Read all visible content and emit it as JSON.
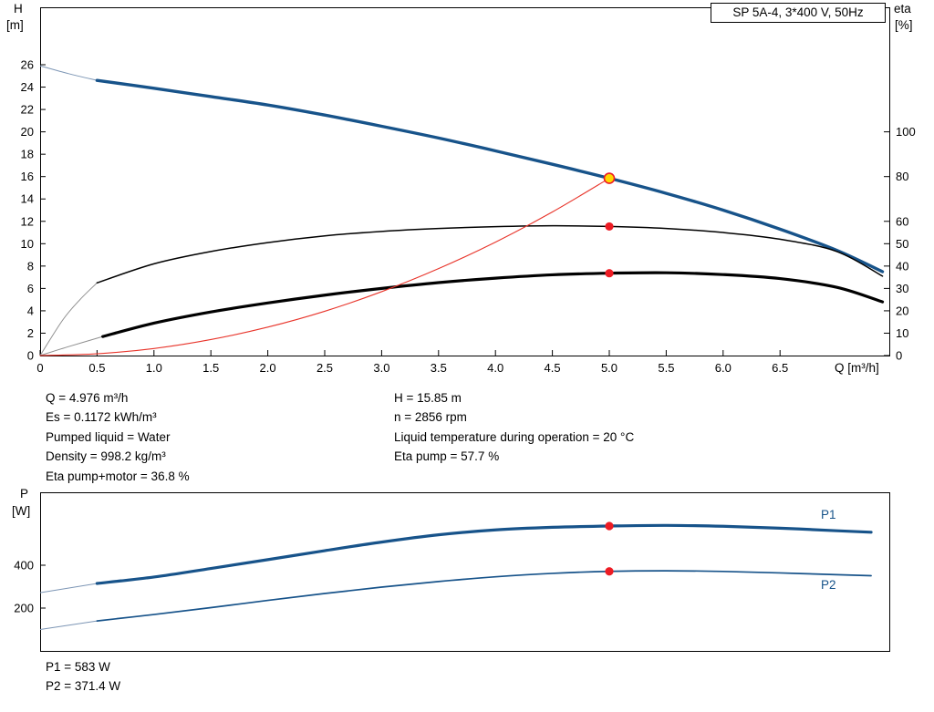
{
  "title_box": "SP 5A-4, 3*400 V, 50Hz",
  "colors": {
    "curve_blue": "#17538a",
    "curve_black": "#000000",
    "curve_red": "#e8342a",
    "dot_red": "#ed1c24",
    "duty_yellow": "#ffd800",
    "lead_gray": "#8f8f8f",
    "lead_blue": "#7d96b5"
  },
  "axis_labels": {
    "h": "H",
    "h_unit": "[m]",
    "eta": "eta",
    "eta_unit": "[%]",
    "q": "Q [m³/h]",
    "p": "P",
    "p_unit": "[W]",
    "p1": "P1",
    "p2": "P2"
  },
  "results": {
    "col1": [
      "Q = 4.976 m³/h",
      "Es = 0.1172 kWh/m³",
      "Pumped liquid = Water",
      "Density = 998.2 kg/m³",
      "Eta pump+motor = 36.8 %"
    ],
    "col2": [
      "H = 15.85 m",
      "n = 2856 rpm",
      "Liquid temperature during operation = 20 °C",
      "Eta pump = 57.7 %"
    ],
    "power": [
      "P1 = 583 W",
      "P2 = 371.4 W"
    ]
  },
  "chart_data": [
    {
      "type": "line",
      "title": "SP 5A-4, 3*400 V, 50Hz",
      "xlabel": "Q [m³/h]",
      "ylabel_left": "H [m]",
      "ylabel_right": "eta [%]",
      "x_range": [
        0,
        7.46
      ],
      "grid": false,
      "x_ticks": [
        {
          "v": 0,
          "t": "0"
        },
        {
          "v": 0.5,
          "t": "0.5"
        },
        {
          "v": 1,
          "t": "1.0"
        },
        {
          "v": 1.5,
          "t": "1.5"
        },
        {
          "v": 2,
          "t": "2.0"
        },
        {
          "v": 2.5,
          "t": "2.5"
        },
        {
          "v": 3,
          "t": "3.0"
        },
        {
          "v": 3.5,
          "t": "3.5"
        },
        {
          "v": 4,
          "t": "4.0"
        },
        {
          "v": 4.5,
          "t": "4.5"
        },
        {
          "v": 5,
          "t": "5.0"
        },
        {
          "v": 5.5,
          "t": "5.5"
        },
        {
          "v": 6,
          "t": "6.0"
        },
        {
          "v": 6.5,
          "t": "6.5"
        }
      ],
      "left_axis": {
        "label": "H [m]",
        "scale": "H",
        "range": [
          0,
          26
        ],
        "ticks": [
          {
            "v": 0,
            "t": "0"
          },
          {
            "v": 2,
            "t": "2"
          },
          {
            "v": 4,
            "t": "4"
          },
          {
            "v": 6,
            "t": "6"
          },
          {
            "v": 8,
            "t": "8"
          },
          {
            "v": 10,
            "t": "10"
          },
          {
            "v": 12,
            "t": "12"
          },
          {
            "v": 14,
            "t": "14"
          },
          {
            "v": 16,
            "t": "16"
          },
          {
            "v": 18,
            "t": "18"
          },
          {
            "v": 20,
            "t": "20"
          },
          {
            "v": 22,
            "t": "22"
          },
          {
            "v": 24,
            "t": "24"
          },
          {
            "v": 26,
            "t": "26"
          }
        ]
      },
      "right_axis": {
        "label": "eta [%]",
        "scale": "eta",
        "range": [
          0,
          100
        ],
        "ticks": [
          {
            "v": 0,
            "t": "0"
          },
          {
            "v": 10,
            "t": "10"
          },
          {
            "v": 20,
            "t": "20"
          },
          {
            "v": 30,
            "t": "30"
          },
          {
            "v": 40,
            "t": "40"
          },
          {
            "v": 50,
            "t": "50"
          },
          {
            "v": 60,
            "t": "60"
          },
          {
            "v": 80,
            "t": "80"
          },
          {
            "v": 100,
            "t": "100"
          }
        ]
      },
      "series": [
        {
          "name": "pump-head-curve",
          "scale": "H",
          "color": "#17538a",
          "width": 3.4,
          "lead_color": "#7d96b5",
          "lead_in": [
            [
              0,
              25.9
            ],
            [
              0.25,
              25.2
            ],
            [
              0.5,
              24.6
            ]
          ],
          "points": [
            [
              0.5,
              24.6
            ],
            [
              1,
              23.9
            ],
            [
              1.5,
              23.15
            ],
            [
              2,
              22.4
            ],
            [
              2.5,
              21.5
            ],
            [
              3,
              20.5
            ],
            [
              3.5,
              19.45
            ],
            [
              4,
              18.3
            ],
            [
              4.5,
              17.1
            ],
            [
              5,
              15.85
            ],
            [
              5.5,
              14.5
            ],
            [
              6,
              13.0
            ],
            [
              6.5,
              11.3
            ],
            [
              7,
              9.4
            ],
            [
              7.4,
              7.5
            ]
          ]
        },
        {
          "name": "eta-pump-curve",
          "scale": "eta",
          "color": "#000000",
          "width": 1.5,
          "lead_color": "#8f8f8f",
          "lead_in": [
            [
              0,
              0
            ],
            [
              0.2,
              16
            ],
            [
              0.35,
              25
            ],
            [
              0.5,
              32.5
            ]
          ],
          "points": [
            [
              0.5,
              32.5
            ],
            [
              1,
              41
            ],
            [
              1.5,
              46.5
            ],
            [
              2,
              50.5
            ],
            [
              2.5,
              53.5
            ],
            [
              3,
              55.5
            ],
            [
              3.5,
              56.8
            ],
            [
              4,
              57.6
            ],
            [
              4.5,
              58
            ],
            [
              5,
              57.7
            ],
            [
              5.5,
              56.8
            ],
            [
              6,
              55
            ],
            [
              6.5,
              52
            ],
            [
              7,
              46.5
            ],
            [
              7.4,
              35.5
            ]
          ]
        },
        {
          "name": "eta-pump-motor-curve",
          "scale": "eta",
          "color": "#000000",
          "width": 3.2,
          "lead_color": "#8f8f8f",
          "lead_in": [
            [
              0,
              0
            ],
            [
              0.25,
              4
            ],
            [
              0.55,
              8.5
            ]
          ],
          "points": [
            [
              0.55,
              8.5
            ],
            [
              1,
              14.5
            ],
            [
              1.5,
              19.5
            ],
            [
              2,
              23.5
            ],
            [
              2.5,
              27
            ],
            [
              3,
              30
            ],
            [
              3.5,
              32.6
            ],
            [
              4,
              34.6
            ],
            [
              4.5,
              36.1
            ],
            [
              5,
              36.8
            ],
            [
              5.5,
              37
            ],
            [
              6,
              36.2
            ],
            [
              6.5,
              34.4
            ],
            [
              7,
              30.5
            ],
            [
              7.4,
              24
            ]
          ]
        },
        {
          "name": "duty-system-curve",
          "scale": "H",
          "color": "#e8342a",
          "width": 1.1,
          "points": [
            [
              0,
              0
            ],
            [
              0.5,
              0.16
            ],
            [
              1,
              0.63
            ],
            [
              1.5,
              1.43
            ],
            [
              2,
              2.54
            ],
            [
              2.5,
              3.96
            ],
            [
              3,
              5.71
            ],
            [
              3.5,
              7.77
            ],
            [
              4,
              10.14
            ],
            [
              4.5,
              12.84
            ],
            [
              5,
              15.85
            ]
          ]
        }
      ],
      "markers": [
        {
          "q": 5,
          "v": 15.85,
          "scale": "H",
          "kind": "duty"
        },
        {
          "q": 5,
          "v": 57.7,
          "scale": "eta",
          "kind": "dot"
        },
        {
          "q": 5,
          "v": 36.8,
          "scale": "eta",
          "kind": "dot"
        }
      ]
    },
    {
      "type": "line",
      "title": "Power curves",
      "xlabel": "Q [m³/h]",
      "ylabel_left": "P [W]",
      "x_range": [
        0,
        7.46
      ],
      "grid": false,
      "left_axis": {
        "label": "P [W]",
        "scale": "P",
        "range": [
          0,
          740
        ],
        "ticks": [
          {
            "v": 400,
            "t": "400"
          },
          {
            "v": 200,
            "t": "200"
          }
        ]
      },
      "series": [
        {
          "name": "p1-power-curve",
          "scale": "P",
          "color": "#17538a",
          "width": 3.2,
          "lead_color": "#7d96b5",
          "lead_in": [
            [
              0,
              272
            ],
            [
              0.5,
              315
            ]
          ],
          "points": [
            [
              0.5,
              315
            ],
            [
              1,
              345
            ],
            [
              1.5,
              385
            ],
            [
              2,
              426
            ],
            [
              2.5,
              468
            ],
            [
              3,
              508
            ],
            [
              3.5,
              542
            ],
            [
              4,
              565
            ],
            [
              4.5,
              577
            ],
            [
              5,
              583
            ],
            [
              5.5,
              586
            ],
            [
              6,
              582
            ],
            [
              6.5,
              573
            ],
            [
              7,
              561
            ],
            [
              7.3,
              554
            ]
          ]
        },
        {
          "name": "p2-power-curve",
          "scale": "P",
          "color": "#17538a",
          "width": 1.7,
          "lead_color": "#7d96b5",
          "lead_in": [
            [
              0,
              100
            ],
            [
              0.5,
              140
            ]
          ],
          "points": [
            [
              0.5,
              140
            ],
            [
              1,
              170
            ],
            [
              1.5,
              202
            ],
            [
              2,
              236
            ],
            [
              2.5,
              268
            ],
            [
              3,
              298
            ],
            [
              3.5,
              324
            ],
            [
              4,
              346
            ],
            [
              4.5,
              362
            ],
            [
              5,
              371.4
            ],
            [
              5.5,
              374
            ],
            [
              6,
              371
            ],
            [
              6.5,
              364
            ],
            [
              7,
              356
            ],
            [
              7.3,
              351
            ]
          ]
        }
      ],
      "markers": [
        {
          "q": 5,
          "v": 583,
          "scale": "P",
          "kind": "dot"
        },
        {
          "q": 5,
          "v": 371.4,
          "scale": "P",
          "kind": "dot"
        }
      ]
    }
  ]
}
